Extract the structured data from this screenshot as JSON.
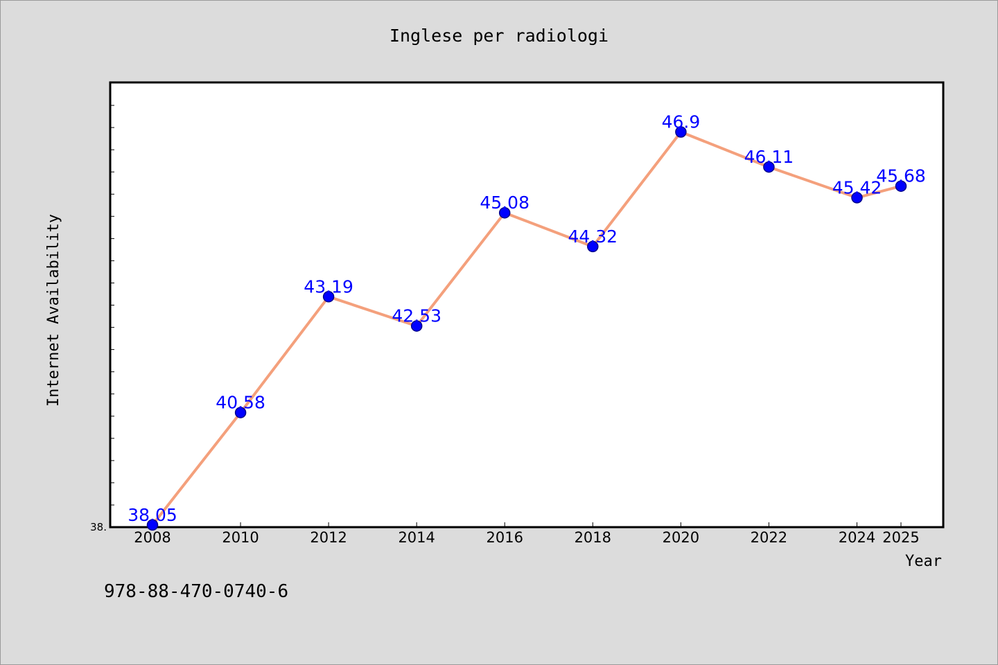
{
  "chart_data": {
    "type": "line",
    "title": "Inglese per radiologi",
    "xlabel": "Year",
    "ylabel": "Internet Availability",
    "x": [
      "2008",
      "2010",
      "2012",
      "2014",
      "2016",
      "2018",
      "2020",
      "2022",
      "2024",
      "2025"
    ],
    "series": [
      {
        "values": [
          38.05,
          40.58,
          43.19,
          42.53,
          45.08,
          44.32,
          46.9,
          46.11,
          45.42,
          45.68
        ]
      }
    ],
    "data_labels": [
      "38.05",
      "40.58",
      "43.19",
      "42.53",
      "45.08",
      "44.32",
      "46.9",
      "46.11",
      "45.42",
      "45.68"
    ],
    "y_tick_label": "38.",
    "ylim": [
      38.0,
      48.0
    ],
    "grid": false,
    "legend": "none",
    "colors": {
      "line": "#f4a07c",
      "marker": "#0000ff",
      "marker_edge": "#00008b",
      "data_label": "#0000ff",
      "plot_background": "#ffffff",
      "page_background": "#dcdcdc"
    }
  },
  "footer": {
    "isbn": "978-88-470-0740-6"
  }
}
